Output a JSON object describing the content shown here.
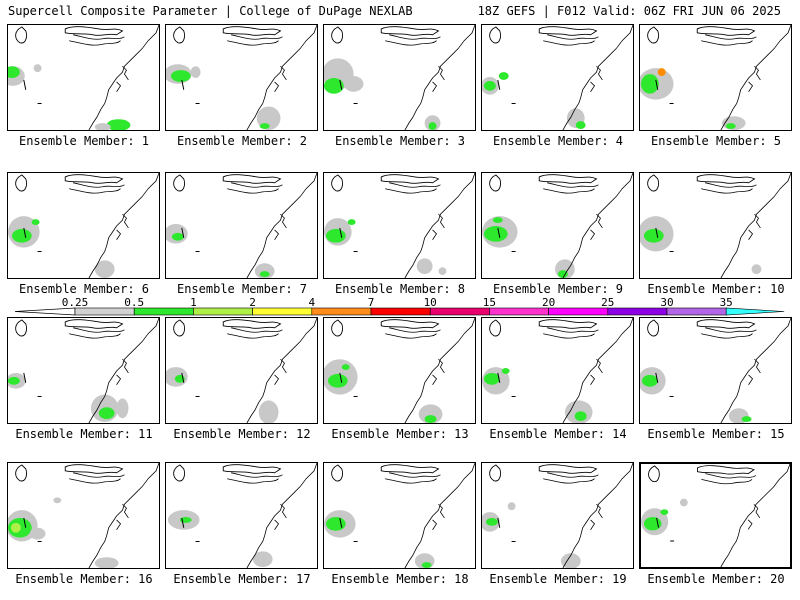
{
  "header": {
    "left_title": "Supercell Composite Parameter | College of DuPage NEXLAB",
    "right_title": "18Z GEFS | F012 Valid: 06Z FRI JUN 06 2025"
  },
  "member_prefix": "Ensemble Member:",
  "members": [
    {
      "label": "Ensemble Member: 1",
      "num": 1,
      "blobs": [
        {
          "x": 5,
          "y": 52,
          "rx": 12,
          "ry": 10,
          "c": "#c8c8c8"
        },
        {
          "x": 4,
          "y": 48,
          "rx": 8,
          "ry": 6,
          "c": "#2ee82e"
        },
        {
          "x": 112,
          "y": 102,
          "rx": 12,
          "ry": 6,
          "c": "#2ee82e"
        },
        {
          "x": 96,
          "y": 104,
          "rx": 8,
          "ry": 4,
          "c": "#c8c8c8"
        },
        {
          "x": 30,
          "y": 44,
          "rx": 4,
          "ry": 4,
          "c": "#c8c8c8"
        }
      ]
    },
    {
      "label": "Ensemble Member: 2",
      "num": 2,
      "blobs": [
        {
          "x": 12,
          "y": 50,
          "rx": 14,
          "ry": 10,
          "c": "#c8c8c8"
        },
        {
          "x": 15,
          "y": 52,
          "rx": 10,
          "ry": 6,
          "c": "#2ee82e"
        },
        {
          "x": 104,
          "y": 95,
          "rx": 12,
          "ry": 12,
          "c": "#c8c8c8"
        },
        {
          "x": 100,
          "y": 103,
          "rx": 5,
          "ry": 3,
          "c": "#2ee82e"
        },
        {
          "x": 30,
          "y": 48,
          "rx": 5,
          "ry": 6,
          "c": "#c8c8c8"
        }
      ]
    },
    {
      "label": "Ensemble Member: 3",
      "num": 3,
      "blobs": [
        {
          "x": 14,
          "y": 50,
          "rx": 16,
          "ry": 16,
          "c": "#c8c8c8"
        },
        {
          "x": 10,
          "y": 62,
          "rx": 10,
          "ry": 8,
          "c": "#2ee82e"
        },
        {
          "x": 30,
          "y": 60,
          "rx": 10,
          "ry": 8,
          "c": "#c8c8c8"
        },
        {
          "x": 110,
          "y": 100,
          "rx": 8,
          "ry": 8,
          "c": "#c8c8c8"
        },
        {
          "x": 110,
          "y": 103,
          "rx": 4,
          "ry": 4,
          "c": "#2ee82e"
        }
      ]
    },
    {
      "label": "Ensemble Member: 4",
      "num": 4,
      "blobs": [
        {
          "x": 8,
          "y": 62,
          "rx": 9,
          "ry": 9,
          "c": "#c8c8c8"
        },
        {
          "x": 8,
          "y": 62,
          "rx": 6,
          "ry": 5,
          "c": "#2ee82e"
        },
        {
          "x": 22,
          "y": 52,
          "rx": 5,
          "ry": 4,
          "c": "#2ee82e"
        },
        {
          "x": 95,
          "y": 95,
          "rx": 9,
          "ry": 10,
          "c": "#c8c8c8"
        },
        {
          "x": 100,
          "y": 102,
          "rx": 5,
          "ry": 4,
          "c": "#2ee82e"
        }
      ]
    },
    {
      "label": "Ensemble Member: 5",
      "num": 5,
      "blobs": [
        {
          "x": 16,
          "y": 60,
          "rx": 18,
          "ry": 16,
          "c": "#c8c8c8"
        },
        {
          "x": 10,
          "y": 60,
          "rx": 9,
          "ry": 10,
          "c": "#2ee82e"
        },
        {
          "x": 22,
          "y": 48,
          "rx": 4,
          "ry": 4,
          "c": "#ff8c00"
        },
        {
          "x": 95,
          "y": 100,
          "rx": 12,
          "ry": 7,
          "c": "#c8c8c8"
        },
        {
          "x": 92,
          "y": 103,
          "rx": 5,
          "ry": 3,
          "c": "#2ee82e"
        }
      ]
    },
    {
      "label": "Ensemble Member: 6",
      "num": 6,
      "blobs": [
        {
          "x": 16,
          "y": 60,
          "rx": 16,
          "ry": 16,
          "c": "#c8c8c8"
        },
        {
          "x": 14,
          "y": 64,
          "rx": 10,
          "ry": 7,
          "c": "#2ee82e"
        },
        {
          "x": 28,
          "y": 50,
          "rx": 4,
          "ry": 3,
          "c": "#2ee82e"
        },
        {
          "x": 98,
          "y": 98,
          "rx": 10,
          "ry": 9,
          "c": "#c8c8c8"
        }
      ]
    },
    {
      "label": "Ensemble Member: 7",
      "num": 7,
      "blobs": [
        {
          "x": 10,
          "y": 62,
          "rx": 12,
          "ry": 10,
          "c": "#c8c8c8"
        },
        {
          "x": 12,
          "y": 65,
          "rx": 6,
          "ry": 4,
          "c": "#2ee82e"
        },
        {
          "x": 100,
          "y": 100,
          "rx": 10,
          "ry": 8,
          "c": "#c8c8c8"
        },
        {
          "x": 100,
          "y": 103,
          "rx": 5,
          "ry": 3,
          "c": "#2ee82e"
        }
      ]
    },
    {
      "label": "Ensemble Member: 8",
      "num": 8,
      "blobs": [
        {
          "x": 14,
          "y": 60,
          "rx": 14,
          "ry": 14,
          "c": "#c8c8c8"
        },
        {
          "x": 12,
          "y": 64,
          "rx": 10,
          "ry": 7,
          "c": "#2ee82e"
        },
        {
          "x": 28,
          "y": 50,
          "rx": 4,
          "ry": 3,
          "c": "#2ee82e"
        },
        {
          "x": 102,
          "y": 95,
          "rx": 8,
          "ry": 8,
          "c": "#c8c8c8"
        },
        {
          "x": 120,
          "y": 100,
          "rx": 4,
          "ry": 4,
          "c": "#c8c8c8"
        }
      ]
    },
    {
      "label": "Ensemble Member: 9",
      "num": 9,
      "blobs": [
        {
          "x": 18,
          "y": 60,
          "rx": 18,
          "ry": 16,
          "c": "#c8c8c8"
        },
        {
          "x": 14,
          "y": 62,
          "rx": 12,
          "ry": 8,
          "c": "#2ee82e"
        },
        {
          "x": 16,
          "y": 48,
          "rx": 5,
          "ry": 3,
          "c": "#2ee82e"
        },
        {
          "x": 84,
          "y": 98,
          "rx": 10,
          "ry": 10,
          "c": "#c8c8c8"
        },
        {
          "x": 82,
          "y": 103,
          "rx": 5,
          "ry": 4,
          "c": "#2ee82e"
        }
      ]
    },
    {
      "label": "Ensemble Member: 10",
      "num": 10,
      "blobs": [
        {
          "x": 16,
          "y": 62,
          "rx": 18,
          "ry": 18,
          "c": "#c8c8c8"
        },
        {
          "x": 14,
          "y": 64,
          "rx": 10,
          "ry": 7,
          "c": "#2ee82e"
        },
        {
          "x": 118,
          "y": 98,
          "rx": 5,
          "ry": 5,
          "c": "#c8c8c8"
        }
      ]
    },
    {
      "label": "Ensemble Member: 11",
      "num": 11,
      "blobs": [
        {
          "x": 8,
          "y": 64,
          "rx": 10,
          "ry": 8,
          "c": "#c8c8c8"
        },
        {
          "x": 6,
          "y": 64,
          "rx": 6,
          "ry": 4,
          "c": "#2ee82e"
        },
        {
          "x": 98,
          "y": 92,
          "rx": 14,
          "ry": 14,
          "c": "#c8c8c8"
        },
        {
          "x": 100,
          "y": 97,
          "rx": 8,
          "ry": 6,
          "c": "#2ee82e"
        },
        {
          "x": 116,
          "y": 92,
          "rx": 6,
          "ry": 10,
          "c": "#c8c8c8"
        }
      ]
    },
    {
      "label": "Ensemble Member: 12",
      "num": 12,
      "blobs": [
        {
          "x": 10,
          "y": 60,
          "rx": 12,
          "ry": 10,
          "c": "#c8c8c8"
        },
        {
          "x": 14,
          "y": 62,
          "rx": 5,
          "ry": 4,
          "c": "#2ee82e"
        },
        {
          "x": 104,
          "y": 96,
          "rx": 10,
          "ry": 12,
          "c": "#c8c8c8"
        }
      ]
    },
    {
      "label": "Ensemble Member: 13",
      "num": 13,
      "blobs": [
        {
          "x": 16,
          "y": 60,
          "rx": 18,
          "ry": 18,
          "c": "#c8c8c8"
        },
        {
          "x": 14,
          "y": 64,
          "rx": 10,
          "ry": 7,
          "c": "#2ee82e"
        },
        {
          "x": 22,
          "y": 50,
          "rx": 4,
          "ry": 3,
          "c": "#2ee82e"
        },
        {
          "x": 108,
          "y": 98,
          "rx": 12,
          "ry": 10,
          "c": "#c8c8c8"
        },
        {
          "x": 108,
          "y": 103,
          "rx": 6,
          "ry": 4,
          "c": "#2ee82e"
        }
      ]
    },
    {
      "label": "Ensemble Member: 14",
      "num": 14,
      "blobs": [
        {
          "x": 14,
          "y": 64,
          "rx": 14,
          "ry": 14,
          "c": "#c8c8c8"
        },
        {
          "x": 10,
          "y": 62,
          "rx": 8,
          "ry": 6,
          "c": "#2ee82e"
        },
        {
          "x": 24,
          "y": 54,
          "rx": 4,
          "ry": 3,
          "c": "#2ee82e"
        },
        {
          "x": 98,
          "y": 96,
          "rx": 14,
          "ry": 12,
          "c": "#c8c8c8"
        },
        {
          "x": 100,
          "y": 100,
          "rx": 6,
          "ry": 5,
          "c": "#2ee82e"
        }
      ]
    },
    {
      "label": "Ensemble Member: 15",
      "num": 15,
      "blobs": [
        {
          "x": 12,
          "y": 64,
          "rx": 14,
          "ry": 14,
          "c": "#c8c8c8"
        },
        {
          "x": 10,
          "y": 64,
          "rx": 8,
          "ry": 6,
          "c": "#2ee82e"
        },
        {
          "x": 100,
          "y": 100,
          "rx": 10,
          "ry": 8,
          "c": "#c8c8c8"
        },
        {
          "x": 108,
          "y": 103,
          "rx": 5,
          "ry": 3,
          "c": "#2ee82e"
        }
      ]
    },
    {
      "label": "Ensemble Member: 16",
      "num": 16,
      "blobs": [
        {
          "x": 14,
          "y": 64,
          "rx": 16,
          "ry": 16,
          "c": "#c8c8c8"
        },
        {
          "x": 12,
          "y": 66,
          "rx": 12,
          "ry": 10,
          "c": "#2ee82e"
        },
        {
          "x": 8,
          "y": 66,
          "rx": 5,
          "ry": 5,
          "c": "#aef048"
        },
        {
          "x": 30,
          "y": 72,
          "rx": 8,
          "ry": 6,
          "c": "#c8c8c8"
        },
        {
          "x": 50,
          "y": 38,
          "rx": 4,
          "ry": 3,
          "c": "#c8c8c8"
        },
        {
          "x": 100,
          "y": 102,
          "rx": 12,
          "ry": 6,
          "c": "#c8c8c8"
        }
      ]
    },
    {
      "label": "Ensemble Member: 17",
      "num": 17,
      "blobs": [
        {
          "x": 18,
          "y": 58,
          "rx": 16,
          "ry": 10,
          "c": "#c8c8c8"
        },
        {
          "x": 20,
          "y": 58,
          "rx": 6,
          "ry": 3,
          "c": "#2ee82e"
        },
        {
          "x": 98,
          "y": 98,
          "rx": 10,
          "ry": 8,
          "c": "#c8c8c8"
        }
      ]
    },
    {
      "label": "Ensemble Member: 18",
      "num": 18,
      "blobs": [
        {
          "x": 16,
          "y": 62,
          "rx": 16,
          "ry": 14,
          "c": "#c8c8c8"
        },
        {
          "x": 12,
          "y": 62,
          "rx": 10,
          "ry": 7,
          "c": "#2ee82e"
        },
        {
          "x": 102,
          "y": 100,
          "rx": 10,
          "ry": 8,
          "c": "#c8c8c8"
        },
        {
          "x": 104,
          "y": 104,
          "rx": 5,
          "ry": 3,
          "c": "#2ee82e"
        }
      ]
    },
    {
      "label": "Ensemble Member: 19",
      "num": 19,
      "blobs": [
        {
          "x": 8,
          "y": 60,
          "rx": 10,
          "ry": 10,
          "c": "#c8c8c8"
        },
        {
          "x": 10,
          "y": 60,
          "rx": 6,
          "ry": 4,
          "c": "#2ee82e"
        },
        {
          "x": 30,
          "y": 44,
          "rx": 4,
          "ry": 4,
          "c": "#c8c8c8"
        },
        {
          "x": 90,
          "y": 100,
          "rx": 10,
          "ry": 8,
          "c": "#c8c8c8"
        }
      ]
    },
    {
      "label": "Ensemble Member: 20",
      "num": 20,
      "blobs": [
        {
          "x": 14,
          "y": 60,
          "rx": 14,
          "ry": 14,
          "c": "#c8c8c8"
        },
        {
          "x": 12,
          "y": 62,
          "rx": 9,
          "ry": 7,
          "c": "#2ee82e"
        },
        {
          "x": 24,
          "y": 50,
          "rx": 4,
          "ry": 3,
          "c": "#2ee82e"
        },
        {
          "x": 44,
          "y": 40,
          "rx": 4,
          "ry": 4,
          "c": "#c8c8c8"
        }
      ]
    }
  ],
  "selected_member": 20,
  "colorbar": {
    "ticks": [
      "0.25",
      "0.5",
      "1",
      "2",
      "4",
      "7",
      "10",
      "15",
      "20",
      "25",
      "30",
      "35"
    ],
    "colors": [
      "#d2d2d2",
      "#2ee82e",
      "#aef048",
      "#ffff33",
      "#ff8c1a",
      "#ff0000",
      "#e8006e",
      "#ff33cc",
      "#ff00ff",
      "#8c00e6",
      "#b266e6",
      "#33ffff"
    ]
  }
}
